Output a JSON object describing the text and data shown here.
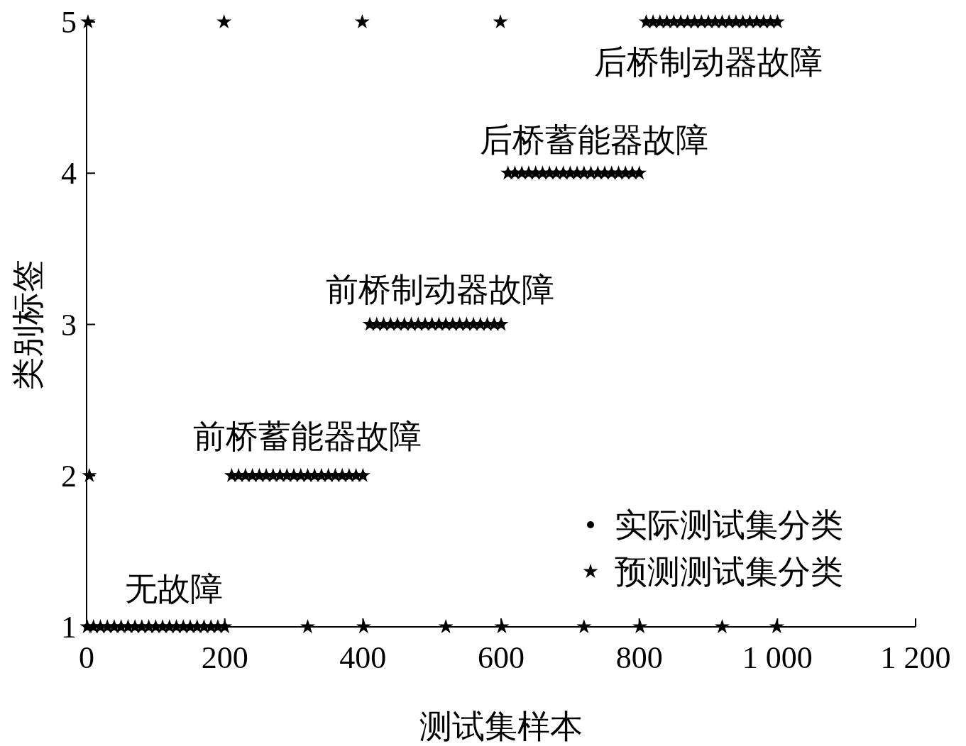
{
  "chart_data": {
    "type": "scatter",
    "xlabel": "测试集样本",
    "ylabel": "类别标签",
    "xlim": [
      0,
      1200
    ],
    "xticks": [
      0,
      200,
      400,
      600,
      800,
      {
        "value": 1000,
        "label": "1 000"
      },
      {
        "value": 1200,
        "label": "1 200"
      }
    ],
    "ylim": [
      1,
      5
    ],
    "yticks": [
      1,
      2,
      3,
      4,
      5
    ],
    "legend": "bottom right",
    "annotations": [
      "无故障",
      "前桥蓄能器故障",
      "前桥制动器故障",
      "后桥蓄能器故障",
      "后桥制动器故障"
    ],
    "series": [
      {
        "name": "实际测试集分类",
        "color": "#000000",
        "marker": "circle",
        "x": [
          1,
          10,
          20,
          30,
          40,
          50,
          60,
          70,
          80,
          90,
          100,
          110,
          120,
          130,
          140,
          150,
          160,
          170,
          180,
          190,
          200,
          210,
          220,
          230,
          240,
          250,
          260,
          270,
          280,
          290,
          300,
          310,
          320,
          330,
          340,
          350,
          360,
          370,
          380,
          390,
          400,
          410,
          420,
          430,
          440,
          450,
          460,
          470,
          480,
          490,
          500,
          510,
          520,
          530,
          540,
          550,
          560,
          570,
          580,
          590,
          600,
          610,
          620,
          630,
          640,
          650,
          660,
          670,
          680,
          690,
          700,
          710,
          720,
          730,
          740,
          750,
          760,
          770,
          780,
          790,
          800,
          810,
          820,
          830,
          840,
          850,
          860,
          870,
          880,
          890,
          900,
          910,
          920,
          930,
          940,
          950,
          960,
          970,
          980,
          990,
          1000
        ],
        "values": [
          1,
          1,
          1,
          1,
          1,
          1,
          1,
          1,
          1,
          1,
          1,
          1,
          1,
          1,
          1,
          1,
          1,
          1,
          1,
          1,
          1,
          2,
          2,
          2,
          2,
          2,
          2,
          2,
          2,
          2,
          2,
          2,
          2,
          2,
          2,
          2,
          2,
          2,
          2,
          2,
          2,
          3,
          3,
          3,
          3,
          3,
          3,
          3,
          3,
          3,
          3,
          3,
          3,
          3,
          3,
          3,
          3,
          3,
          3,
          3,
          3,
          4,
          4,
          4,
          4,
          4,
          4,
          4,
          4,
          4,
          4,
          4,
          4,
          4,
          4,
          4,
          4,
          4,
          4,
          4,
          4,
          5,
          5,
          5,
          5,
          5,
          5,
          5,
          5,
          5,
          5,
          5,
          5,
          5,
          5,
          5,
          5,
          5,
          5,
          5,
          5
        ]
      },
      {
        "name": "预测测试集分类",
        "color": "#000000",
        "marker": "star",
        "x": [
          1,
          10,
          20,
          30,
          40,
          50,
          60,
          70,
          80,
          90,
          100,
          110,
          120,
          130,
          140,
          150,
          160,
          170,
          180,
          190,
          200,
          210,
          220,
          230,
          240,
          250,
          260,
          270,
          280,
          290,
          300,
          310,
          320,
          330,
          340,
          350,
          360,
          370,
          380,
          390,
          400,
          410,
          420,
          430,
          440,
          450,
          460,
          470,
          480,
          490,
          500,
          510,
          520,
          530,
          540,
          550,
          560,
          570,
          580,
          590,
          600,
          610,
          620,
          630,
          640,
          650,
          660,
          670,
          680,
          690,
          700,
          710,
          720,
          730,
          740,
          750,
          760,
          770,
          780,
          790,
          800,
          810,
          820,
          830,
          840,
          850,
          860,
          870,
          880,
          890,
          900,
          910,
          920,
          930,
          940,
          950,
          960,
          970,
          980,
          990,
          1000,
          2,
          4,
          199,
          399,
          599,
          320,
          401,
          520,
          601,
          720,
          801,
          920,
          999
        ],
        "values": [
          1,
          1,
          1,
          1,
          1,
          1,
          1,
          1,
          1,
          1,
          1,
          1,
          1,
          1,
          1,
          1,
          1,
          1,
          1,
          1,
          1,
          2,
          2,
          2,
          2,
          2,
          2,
          2,
          2,
          2,
          2,
          2,
          2,
          2,
          2,
          2,
          2,
          2,
          2,
          2,
          2,
          3,
          3,
          3,
          3,
          3,
          3,
          3,
          3,
          3,
          3,
          3,
          3,
          3,
          3,
          3,
          3,
          3,
          3,
          3,
          3,
          4,
          4,
          4,
          4,
          4,
          4,
          4,
          4,
          4,
          4,
          4,
          4,
          4,
          4,
          4,
          4,
          4,
          4,
          4,
          4,
          5,
          5,
          5,
          5,
          5,
          5,
          5,
          5,
          5,
          5,
          5,
          5,
          5,
          5,
          5,
          5,
          5,
          5,
          5,
          5,
          5,
          2,
          5,
          5,
          5,
          1,
          1,
          1,
          1,
          1,
          1,
          1,
          1
        ]
      }
    ]
  }
}
